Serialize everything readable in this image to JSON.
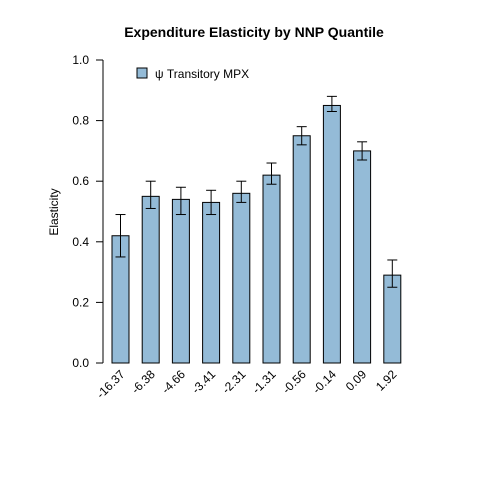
{
  "chart_data": {
    "type": "bar",
    "title": "Expenditure Elasticity  by  NNP Quantile",
    "xlabel": "",
    "ylabel": "Elasticity",
    "ylim": [
      0,
      1
    ],
    "yticks": [
      "0.0",
      "0.2",
      "0.4",
      "0.6",
      "0.8",
      "1.0"
    ],
    "categories": [
      "-16.37",
      "-6.38",
      "-4.66",
      "-3.41",
      "-2.31",
      "-1.31",
      "-0.56",
      "-0.14",
      "0.09",
      "1.92"
    ],
    "series": [
      {
        "name": "ψ Transitory MPX",
        "values": [
          0.42,
          0.55,
          0.54,
          0.53,
          0.56,
          0.62,
          0.75,
          0.85,
          0.7,
          0.29
        ],
        "error_low": [
          0.35,
          0.51,
          0.49,
          0.49,
          0.53,
          0.59,
          0.72,
          0.83,
          0.67,
          0.25
        ],
        "error_high": [
          0.49,
          0.6,
          0.58,
          0.57,
          0.6,
          0.66,
          0.78,
          0.88,
          0.73,
          0.34
        ]
      }
    ],
    "grid": false,
    "legend_position": "top-left",
    "colors": {
      "bar_fill": "#94BBD7",
      "bar_stroke": "#000000",
      "error_bar": "#000000"
    }
  }
}
